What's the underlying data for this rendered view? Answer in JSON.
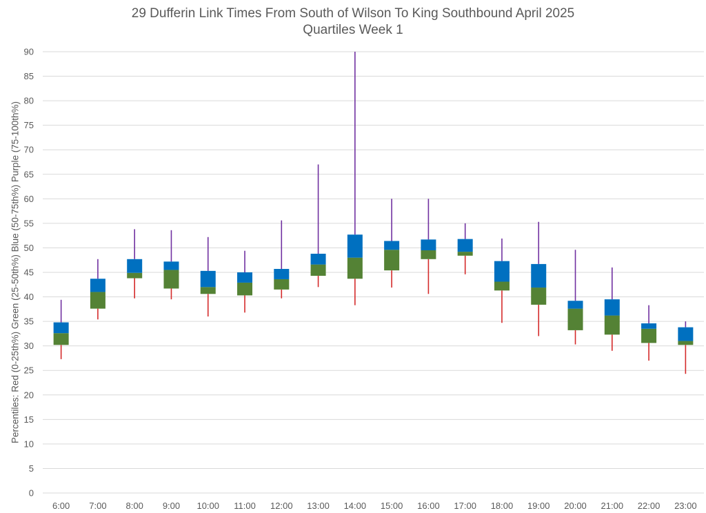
{
  "chart_data": {
    "type": "candlestick-quartiles",
    "title": "29 Dufferin Link Times From South of Wilson To King Southbound April 2025",
    "subtitle": "Quartiles Week 1",
    "xlabel": "",
    "ylabel": "Percentiles:  Red (0-25th%)  Green (25-50th%)  Blue (50-75th%)  Purple (75-100th%)",
    "ylim": [
      0,
      90
    ],
    "yticks": [
      0,
      5,
      10,
      15,
      20,
      25,
      30,
      35,
      40,
      45,
      50,
      55,
      60,
      65,
      70,
      75,
      80,
      85,
      90
    ],
    "grid": true,
    "legend": "none",
    "colors": {
      "min_to_p25": "#d42a2a",
      "p25_to_p50": "#548235",
      "p50_to_p75": "#0070c0",
      "p75_to_max": "#7030a0"
    },
    "categories": [
      "6:00",
      "7:00",
      "8:00",
      "9:00",
      "10:00",
      "11:00",
      "12:00",
      "13:00",
      "14:00",
      "15:00",
      "16:00",
      "17:00",
      "18:00",
      "19:00",
      "20:00",
      "21:00",
      "22:00",
      "23:00"
    ],
    "series": [
      {
        "name": "min",
        "values": [
          27.3,
          35.4,
          39.7,
          39.5,
          36.0,
          36.8,
          39.7,
          42.0,
          38.3,
          41.9,
          40.6,
          44.6,
          34.7,
          32.0,
          30.3,
          29.0,
          27.0,
          24.3
        ]
      },
      {
        "name": "p25",
        "values": [
          30.2,
          37.6,
          43.8,
          41.7,
          40.6,
          40.3,
          41.5,
          44.3,
          43.7,
          45.4,
          47.7,
          48.4,
          41.3,
          38.4,
          33.2,
          32.3,
          30.6,
          30.2
        ]
      },
      {
        "name": "median",
        "values": [
          32.6,
          41.0,
          44.9,
          45.5,
          42.0,
          42.9,
          43.6,
          46.6,
          48.0,
          49.6,
          49.5,
          49.2,
          43.1,
          41.9,
          37.6,
          36.2,
          33.5,
          31.0
        ]
      },
      {
        "name": "p75",
        "values": [
          34.8,
          43.7,
          47.7,
          47.2,
          45.3,
          45.0,
          45.7,
          48.8,
          52.7,
          51.4,
          51.7,
          51.8,
          47.3,
          46.7,
          39.2,
          39.5,
          34.6,
          33.8
        ]
      },
      {
        "name": "max",
        "values": [
          39.4,
          47.7,
          53.8,
          53.6,
          52.2,
          49.4,
          55.6,
          67.0,
          90.0,
          60.0,
          60.0,
          55.0,
          51.9,
          55.3,
          49.6,
          46.0,
          38.3,
          35.0
        ]
      }
    ]
  }
}
